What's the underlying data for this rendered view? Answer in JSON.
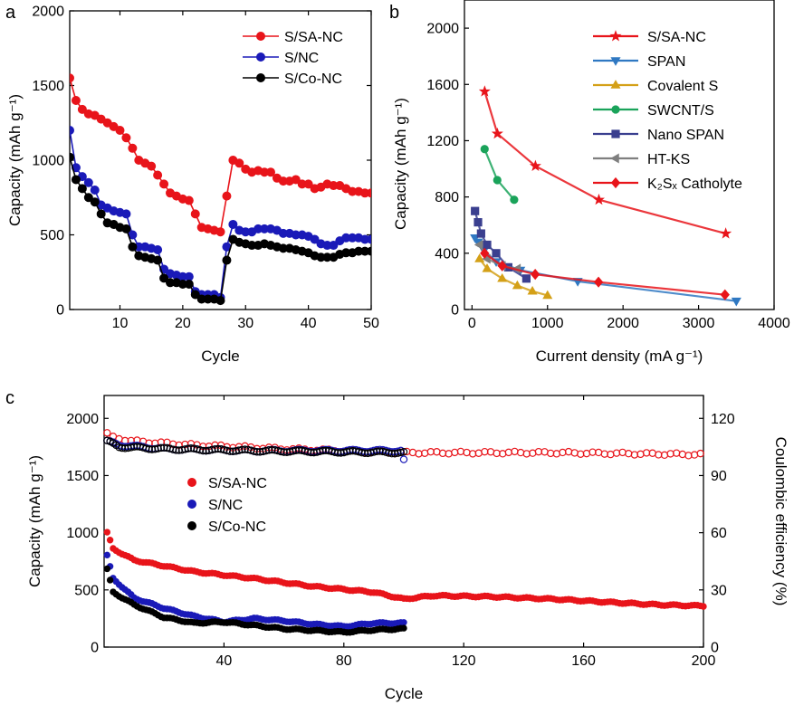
{
  "panel_labels": [
    "a",
    "b",
    "c"
  ],
  "chart_data": [
    {
      "panel": "a",
      "type": "line",
      "xlabel": "Cycle",
      "ylabel": "Capacity (mAh g⁻¹)",
      "xlim": [
        2,
        50
      ],
      "ylim": [
        0,
        2000
      ],
      "xticks": [
        10,
        20,
        30,
        40,
        50
      ],
      "yticks": [
        0,
        500,
        1000,
        1500,
        2000
      ],
      "legend_position": "top-right",
      "series": [
        {
          "name": "S/SA-NC",
          "color": "#e8141a",
          "x": [
            2,
            3,
            4,
            5,
            6,
            7,
            8,
            9,
            10,
            11,
            12,
            13,
            14,
            15,
            16,
            17,
            18,
            19,
            20,
            21,
            22,
            23,
            24,
            25,
            26,
            27,
            28,
            29,
            30,
            31,
            32,
            33,
            34,
            35,
            36,
            37,
            38,
            39,
            40,
            41,
            42,
            43,
            44,
            45,
            46,
            47,
            48,
            49,
            50
          ],
          "y": [
            1550,
            1400,
            1340,
            1310,
            1300,
            1275,
            1250,
            1225,
            1200,
            1150,
            1080,
            1000,
            980,
            960,
            900,
            840,
            780,
            760,
            740,
            730,
            640,
            550,
            540,
            530,
            520,
            760,
            1000,
            980,
            940,
            920,
            930,
            920,
            920,
            880,
            860,
            860,
            870,
            840,
            840,
            810,
            820,
            840,
            830,
            830,
            810,
            790,
            790,
            780,
            780
          ]
        },
        {
          "name": "S/NC",
          "color": "#1a1ab8",
          "x": [
            2,
            3,
            4,
            5,
            6,
            7,
            8,
            9,
            10,
            11,
            12,
            13,
            14,
            15,
            16,
            17,
            18,
            19,
            20,
            21,
            22,
            23,
            24,
            25,
            26,
            27,
            28,
            29,
            30,
            31,
            32,
            33,
            34,
            35,
            36,
            37,
            38,
            39,
            40,
            41,
            42,
            43,
            44,
            45,
            46,
            47,
            48,
            49,
            50
          ],
          "y": [
            1200,
            950,
            890,
            850,
            800,
            700,
            680,
            660,
            650,
            640,
            500,
            420,
            420,
            410,
            400,
            270,
            240,
            230,
            220,
            220,
            120,
            100,
            100,
            100,
            80,
            420,
            570,
            530,
            520,
            520,
            540,
            540,
            540,
            530,
            510,
            510,
            500,
            500,
            490,
            470,
            440,
            430,
            430,
            460,
            480,
            480,
            480,
            470,
            470
          ]
        },
        {
          "name": "S/Co-NC",
          "color": "#000000",
          "x": [
            2,
            3,
            4,
            5,
            6,
            7,
            8,
            9,
            10,
            11,
            12,
            13,
            14,
            15,
            16,
            17,
            18,
            19,
            20,
            21,
            22,
            23,
            24,
            25,
            26,
            27,
            28,
            29,
            30,
            31,
            32,
            33,
            34,
            35,
            36,
            37,
            38,
            39,
            40,
            41,
            42,
            43,
            44,
            45,
            46,
            47,
            48,
            49,
            50
          ],
          "y": [
            1020,
            870,
            810,
            750,
            720,
            640,
            580,
            570,
            550,
            540,
            420,
            360,
            350,
            340,
            330,
            210,
            180,
            180,
            170,
            170,
            100,
            70,
            70,
            70,
            60,
            330,
            470,
            450,
            440,
            430,
            430,
            440,
            430,
            420,
            410,
            410,
            400,
            390,
            380,
            360,
            350,
            350,
            350,
            370,
            380,
            380,
            390,
            390,
            390
          ]
        }
      ]
    },
    {
      "panel": "b",
      "type": "line",
      "xlabel": "Current density (mA g⁻¹)",
      "ylabel": "Capacity (mAh g⁻¹)",
      "xlim": [
        -100,
        4000
      ],
      "ylim": [
        0,
        2200
      ],
      "xticks": [
        0,
        1000,
        2000,
        3000,
        4000
      ],
      "yticks": [
        0,
        400,
        800,
        1200,
        1600,
        2000
      ],
      "legend_position": "top-right",
      "series": [
        {
          "name": "S/SA-NC",
          "color": "#e8141a",
          "marker": "star",
          "x": [
            168,
            336,
            840,
            1680,
            3360
          ],
          "y": [
            1550,
            1250,
            1020,
            780,
            540
          ]
        },
        {
          "name": "SPAN",
          "color": "#2f78c2",
          "marker": "triangle-down",
          "x": [
            40,
            80,
            160,
            320,
            640,
            1400,
            3500
          ],
          "y": [
            510,
            480,
            420,
            340,
            280,
            200,
            60
          ]
        },
        {
          "name": "Covalent S",
          "color": "#d4a017",
          "marker": "triangle-up",
          "x": [
            100,
            200,
            400,
            600,
            800,
            1000
          ],
          "y": [
            360,
            290,
            220,
            170,
            130,
            100
          ]
        },
        {
          "name": "SWCNT/S",
          "color": "#1aa35a",
          "marker": "circle",
          "x": [
            167,
            335,
            558
          ],
          "y": [
            1140,
            920,
            780
          ]
        },
        {
          "name": "Nano SPAN",
          "color": "#3a3f8f",
          "marker": "square",
          "x": [
            40,
            80,
            120,
            200,
            320,
            480,
            720
          ],
          "y": [
            700,
            620,
            540,
            460,
            400,
            300,
            220
          ]
        },
        {
          "name": "HT-KS",
          "color": "#7f7f7f",
          "marker": "triangle-left",
          "x": [
            100,
            200,
            400,
            600
          ],
          "y": [
            460,
            360,
            310,
            290
          ]
        },
        {
          "name": "K₂Sₓ Catholyte",
          "color": "#e8141a",
          "marker": "diamond",
          "x": [
            167,
            400,
            837,
            1675,
            3350
          ],
          "y": [
            400,
            310,
            250,
            195,
            105
          ]
        }
      ]
    },
    {
      "panel": "c",
      "type": "scatter",
      "xlabel": "Cycle",
      "ylabel": "Capacity (mAh g⁻¹)",
      "ylabel_right": "Coulombic efficiency (%)",
      "xlim": [
        0,
        200
      ],
      "ylim": [
        0,
        2200
      ],
      "ylim_right": [
        0,
        132
      ],
      "xticks": [
        40,
        80,
        120,
        160,
        200
      ],
      "yticks": [
        0,
        500,
        1000,
        1500,
        2000
      ],
      "yticks_right": [
        0,
        30,
        60,
        90,
        120
      ],
      "legend_position": "middle-left",
      "capacity_series": [
        {
          "name": "S/SA-NC",
          "color": "#e8141a",
          "n": 200,
          "anchors_x": [
            1,
            3,
            10,
            30,
            50,
            70,
            90,
            100,
            110,
            130,
            150,
            170,
            185,
            200
          ],
          "anchors_y": [
            1000,
            860,
            760,
            660,
            600,
            530,
            480,
            420,
            450,
            440,
            420,
            390,
            370,
            360
          ]
        },
        {
          "name": "S/NC",
          "color": "#1a1ab8",
          "n": 100,
          "anchors_x": [
            1,
            3,
            10,
            20,
            30,
            40,
            50,
            60,
            70,
            80,
            90,
            100
          ],
          "anchors_y": [
            800,
            600,
            430,
            340,
            270,
            220,
            250,
            230,
            200,
            180,
            210,
            210
          ]
        },
        {
          "name": "S/Co-NC",
          "color": "#000000",
          "n": 100,
          "anchors_x": [
            1,
            3,
            10,
            20,
            30,
            40,
            60,
            80,
            90,
            100
          ],
          "anchors_y": [
            680,
            480,
            370,
            260,
            210,
            220,
            160,
            130,
            150,
            160
          ]
        }
      ],
      "efficiency_series": [
        {
          "name": "S/SA-NC",
          "color": "#e8141a",
          "n": 200,
          "anchors_x": [
            1,
            3,
            10,
            30,
            60,
            100,
            150,
            200
          ],
          "anchors_y": [
            112,
            110,
            108,
            106,
            104,
            102,
            102,
            101
          ]
        },
        {
          "name": "S/NC",
          "color": "#1a1ab8",
          "n": 100,
          "anchors_x": [
            1,
            5,
            20,
            50,
            90,
            99,
            100
          ],
          "anchors_y": [
            108,
            106,
            104,
            103,
            103,
            103,
            98
          ]
        },
        {
          "name": "S/Co-NC",
          "color": "#000000",
          "n": 100,
          "anchors_x": [
            1,
            5,
            20,
            50,
            100
          ],
          "anchors_y": [
            108,
            105,
            104,
            103,
            102
          ]
        }
      ]
    }
  ]
}
